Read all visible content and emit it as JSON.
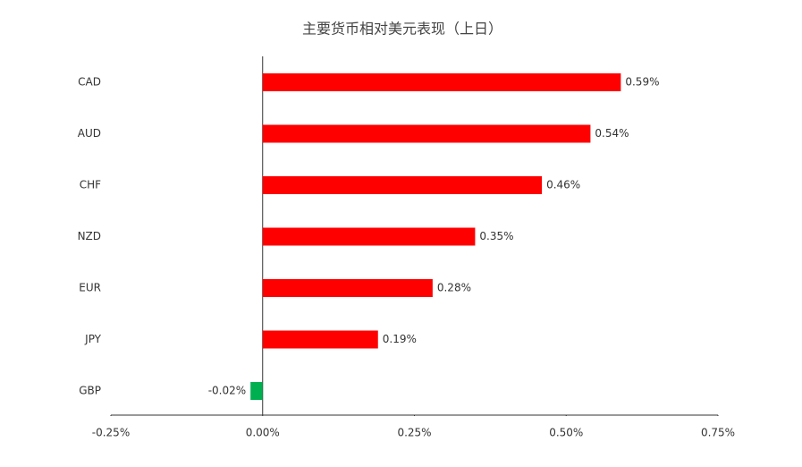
{
  "chart_data": {
    "type": "hbar",
    "title": "主要货币相对美元表现（上日）",
    "categories": [
      "CAD",
      "AUD",
      "CHF",
      "NZD",
      "EUR",
      "JPY",
      "GBP"
    ],
    "values": [
      0.59,
      0.54,
      0.46,
      0.35,
      0.28,
      0.19,
      -0.02
    ],
    "value_labels": [
      "0.59%",
      "0.54%",
      "0.46%",
      "0.35%",
      "0.28%",
      "0.19%",
      "-0.02%"
    ],
    "colors": [
      "#ff0000",
      "#ff0000",
      "#ff0000",
      "#ff0000",
      "#ff0000",
      "#ff0000",
      "#00b050"
    ],
    "xlim": [
      -0.25,
      0.75
    ],
    "xticks": [
      {
        "value": -0.25,
        "label": "-0.25%"
      },
      {
        "value": 0,
        "label": "0.00%"
      },
      {
        "value": 0.25,
        "label": "0.25%"
      },
      {
        "value": 0.5,
        "label": "0.50%"
      },
      {
        "value": 0.75,
        "label": "0.75%"
      }
    ],
    "grid": false
  }
}
